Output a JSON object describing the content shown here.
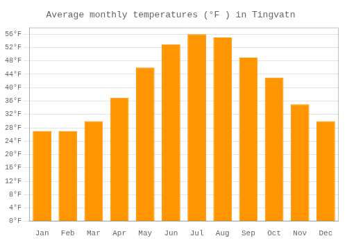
{
  "chart_data": {
    "type": "bar",
    "title": "Average monthly temperatures (°F ) in Tingvatn",
    "categories": [
      "Jan",
      "Feb",
      "Mar",
      "Apr",
      "May",
      "Jun",
      "Jul",
      "Aug",
      "Sep",
      "Oct",
      "Nov",
      "Dec"
    ],
    "values": [
      27,
      27,
      30,
      37,
      46,
      53,
      56,
      55,
      49,
      43,
      35,
      30
    ],
    "color": "#FF9500",
    "ylim": [
      0,
      58
    ],
    "yticks": [
      {
        "value": 0,
        "label": "0°F"
      },
      {
        "value": 4,
        "label": "4°F"
      },
      {
        "value": 8,
        "label": "8°F"
      },
      {
        "value": 12,
        "label": "12°F"
      },
      {
        "value": 16,
        "label": "16°F"
      },
      {
        "value": 20,
        "label": "20°F"
      },
      {
        "value": 24,
        "label": "24°F"
      },
      {
        "value": 28,
        "label": "28°F"
      },
      {
        "value": 32,
        "label": "32°F"
      },
      {
        "value": 36,
        "label": "36°F"
      },
      {
        "value": 40,
        "label": "40°F"
      },
      {
        "value": 44,
        "label": "44°F"
      },
      {
        "value": 48,
        "label": "48°F"
      },
      {
        "value": 52,
        "label": "52°F"
      },
      {
        "value": 56,
        "label": "56°F"
      }
    ],
    "grid": true
  }
}
